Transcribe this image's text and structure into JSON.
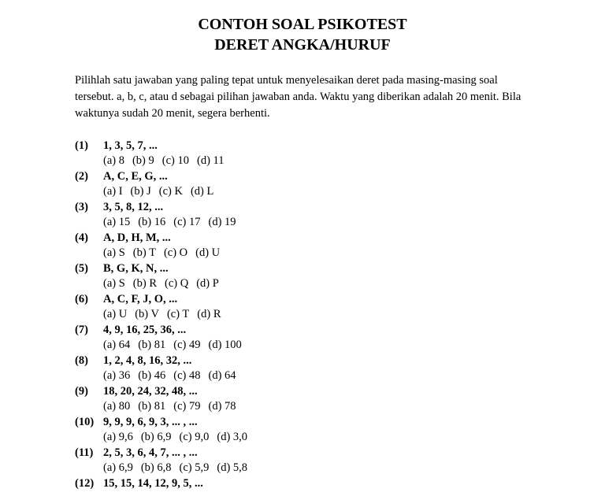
{
  "title_line1": "CONTOH SOAL PSIKOTEST",
  "title_line2": "DERET ANGKA/HURUF",
  "instructions": "Pilihlah satu jawaban yang paling tepat untuk menyelesaikan deret pada masing-masing soal tersebut. a, b, c, atau d sebagai pilihan jawaban anda. Waktu yang diberikan adalah 20 menit. Bila waktunya sudah 20 menit, segera berhenti.",
  "questions": [
    {
      "num": "(1)",
      "pattern": "1, 3, 5, 7, ...",
      "opts": [
        "(a) 8",
        "(b) 9",
        "(c) 10",
        "(d) 11"
      ]
    },
    {
      "num": "(2)",
      "pattern": "A, C, E, G, ...",
      "opts": [
        "(a) I",
        "(b) J",
        "(c) K",
        "(d) L"
      ]
    },
    {
      "num": "(3)",
      "pattern": "3, 5, 8, 12, ...",
      "opts": [
        "(a) 15",
        "(b) 16",
        "(c) 17",
        "(d) 19"
      ]
    },
    {
      "num": "(4)",
      "pattern": "A, D, H, M, ...",
      "opts": [
        "(a) S",
        "(b) T",
        "(c) O",
        "(d) U"
      ]
    },
    {
      "num": "(5)",
      "pattern": "B, G, K, N, ...",
      "opts": [
        "(a) S",
        "(b) R",
        "(c) Q",
        "(d) P"
      ]
    },
    {
      "num": "(6)",
      "pattern": "A, C, F, J, O, ...",
      "opts": [
        "(a) U",
        "(b) V",
        "(c) T",
        "(d) R"
      ]
    },
    {
      "num": "(7)",
      "pattern": "4, 9, 16, 25, 36, ...",
      "opts": [
        "(a) 64",
        "(b) 81",
        "(c) 49",
        "(d) 100"
      ]
    },
    {
      "num": "(8)",
      "pattern": "1, 2, 4, 8, 16, 32, ...",
      "opts": [
        "(a) 36",
        "(b) 46",
        "(c) 48",
        "(d) 64"
      ]
    },
    {
      "num": "(9)",
      "pattern": "18, 20, 24, 32, 48, ...",
      "opts": [
        "(a) 80",
        "(b) 81",
        "(c) 79",
        "(d) 78"
      ]
    },
    {
      "num": "(10)",
      "pattern": "9, 9, 9, 6, 9, 3, ... , ...",
      "opts": [
        "(a) 9,6",
        "(b) 6,9",
        "(c) 9,0",
        "(d) 3,0"
      ]
    },
    {
      "num": "(11)",
      "pattern": "2, 5, 3, 6, 4, 7, ... , ...",
      "opts": [
        "(a) 6,9",
        "(b) 6,8",
        "(c) 5,9",
        "(d) 5,8"
      ]
    },
    {
      "num": "(12)",
      "pattern": "15, 15, 14, 12, 9, 5, ...",
      "opts": []
    }
  ]
}
